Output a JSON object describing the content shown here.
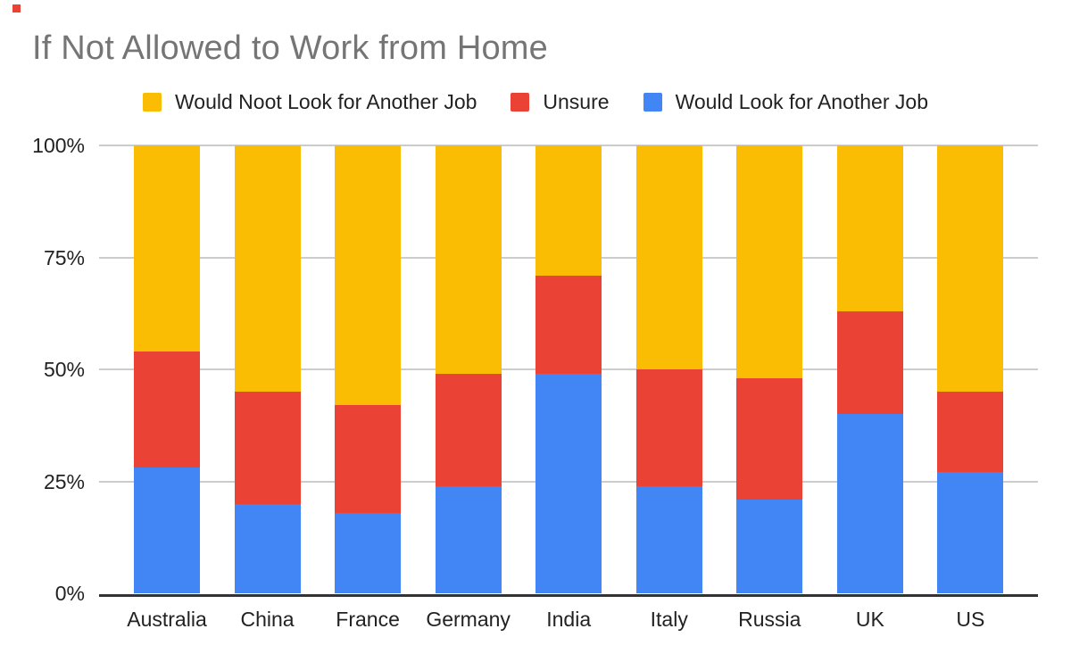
{
  "title": "If Not Allowed to Work from Home",
  "legend": {
    "items": [
      {
        "label": "Would Noot Look for Another Job",
        "color": "#fbbc04"
      },
      {
        "label": "Unsure",
        "color": "#ea4335"
      },
      {
        "label": "Would Look for Another Job",
        "color": "#4285f4"
      }
    ]
  },
  "colors": {
    "blue": "#4285f4",
    "red": "#ea4335",
    "yellow": "#fbbc04",
    "title_gray": "#757575",
    "gridline": "#cccccc",
    "axis": "#333333",
    "label_text": "#222222"
  },
  "chart_data": {
    "type": "bar",
    "stacked": true,
    "percent_stacked": true,
    "title": "If Not Allowed to Work from Home",
    "categories": [
      "Australia",
      "China",
      "France",
      "Germany",
      "India",
      "Italy",
      "Russia",
      "UK",
      "US"
    ],
    "series": [
      {
        "name": "Would Look for Another Job",
        "color": "#4285f4",
        "values": [
          28,
          20,
          18,
          24,
          49,
          24,
          21,
          40,
          27
        ]
      },
      {
        "name": "Unsure",
        "color": "#ea4335",
        "values": [
          26,
          25,
          24,
          25,
          22,
          26,
          27,
          23,
          18
        ]
      },
      {
        "name": "Would Noot Look for Another Job",
        "color": "#fbbc04",
        "values": [
          46,
          55,
          58,
          51,
          29,
          50,
          52,
          37,
          55
        ]
      }
    ],
    "xlabel": "",
    "ylabel": "",
    "ylim": [
      0,
      100
    ],
    "y_ticks": [
      "0%",
      "25%",
      "50%",
      "75%",
      "100%"
    ],
    "y_tick_values": [
      0,
      25,
      50,
      75,
      100
    ],
    "grid": true,
    "legend_position": "top"
  }
}
